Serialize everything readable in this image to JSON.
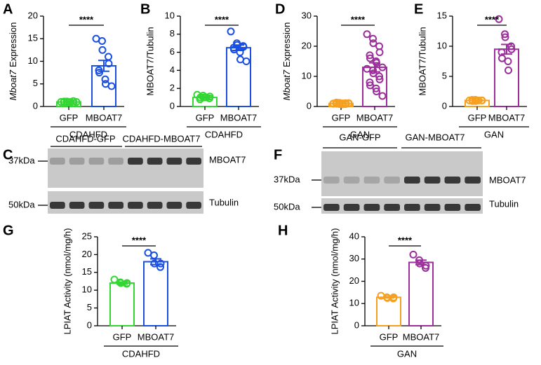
{
  "chart_data": [
    {
      "type": "bar",
      "panel": "A",
      "ylabel": {
        "italic": "Mboat7",
        "text": "Expression"
      },
      "categories": [
        "GFP",
        "MBOAT7"
      ],
      "group_label": "CDAHFD",
      "values": [
        1.0,
        9.0
      ],
      "errors": [
        0.1,
        1.2
      ],
      "colors": [
        "#33d633",
        "#1a4fe0"
      ],
      "points": [
        [
          1.0,
          1.1,
          0.9,
          1.2,
          0.8,
          1.0,
          1.1,
          0.9,
          1.0,
          1.0
        ],
        [
          15.0,
          14.5,
          12.5,
          11.0,
          9.5,
          8.0,
          7.5,
          6.0,
          5.0,
          4.5
        ]
      ],
      "significance": "****",
      "ylim": [
        0,
        20
      ],
      "yticks": [
        0,
        5,
        10,
        15,
        20
      ]
    },
    {
      "type": "bar",
      "panel": "B",
      "ylabel": "MBOAT7/Tubulin",
      "categories": [
        "GFP",
        "MBOAT7"
      ],
      "group_label": "CDAHFD",
      "values": [
        1.0,
        6.5
      ],
      "errors": [
        0.1,
        0.3
      ],
      "colors": [
        "#33d633",
        "#1a4fe0"
      ],
      "points": [
        [
          1.3,
          1.2,
          1.0,
          0.9,
          1.1,
          0.8,
          1.0,
          1.0
        ],
        [
          8.3,
          7.0,
          6.8,
          6.7,
          6.6,
          6.5,
          6.3,
          6.0,
          5.2,
          5.0
        ]
      ],
      "significance": "****",
      "ylim": [
        0,
        10
      ],
      "yticks": [
        0,
        2,
        4,
        6,
        8,
        10
      ]
    },
    {
      "type": "bar",
      "panel": "D",
      "ylabel": {
        "italic": "Mboat7",
        "text": "Expression"
      },
      "categories": [
        "GFP",
        "MBOAT7"
      ],
      "group_label": "GAN",
      "values": [
        1.0,
        13.0
      ],
      "errors": [
        0.1,
        1.5
      ],
      "colors": [
        "#f5a020",
        "#9b2f9b"
      ],
      "points": [
        [
          1.0,
          1.2,
          0.8,
          1.1,
          0.9,
          1.0,
          1.3,
          0.7,
          1.0,
          1.1,
          0.9,
          1.0,
          1.2,
          0.8,
          1.0,
          1.1,
          0.9,
          1.0,
          1.0,
          1.0
        ],
        [
          24.0,
          22.5,
          21.0,
          20.0,
          18.0,
          17.0,
          16.0,
          15.0,
          14.5,
          13.0,
          12.5,
          12.0,
          11.0,
          10.0,
          9.0,
          8.0,
          7.0,
          6.0,
          5.0,
          3.5
        ]
      ],
      "significance": "****",
      "ylim": [
        0,
        30
      ],
      "yticks": [
        0,
        10,
        20,
        30
      ]
    },
    {
      "type": "bar",
      "panel": "E",
      "ylabel": "MBOAT7/Tubulin",
      "categories": [
        "GFP",
        "MBOAT7"
      ],
      "group_label": "GAN",
      "values": [
        1.0,
        9.5
      ],
      "errors": [
        0.1,
        0.8
      ],
      "colors": [
        "#f5a020",
        "#9b2f9b"
      ],
      "points": [
        [
          1.0,
          1.1,
          0.9,
          1.0,
          1.0,
          1.1,
          0.9,
          1.0
        ],
        [
          14.5,
          12.0,
          11.5,
          10.0,
          9.5,
          9.0,
          8.0,
          7.5,
          6.0
        ]
      ],
      "significance": "****",
      "ylim": [
        0,
        15
      ],
      "yticks": [
        0,
        5,
        10,
        15
      ]
    },
    {
      "type": "bar",
      "panel": "G",
      "ylabel": "LPIAT Activity (nmol/mg/h)",
      "categories": [
        "GFP",
        "MBOAT7"
      ],
      "group_label": "CDAHFD",
      "values": [
        12.0,
        18.0
      ],
      "errors": [
        0.3,
        0.8
      ],
      "colors": [
        "#33d633",
        "#1a4fe0"
      ],
      "points": [
        [
          13.0,
          12.2,
          12.0,
          11.8,
          12.0
        ],
        [
          20.5,
          19.8,
          17.5,
          16.5,
          17.5
        ]
      ],
      "significance": "****",
      "ylim": [
        0,
        25
      ],
      "yticks": [
        0,
        5,
        10,
        15,
        20,
        25
      ]
    },
    {
      "type": "bar",
      "panel": "H",
      "ylabel": "LPIAT Activity (nmol/mg/h)",
      "categories": [
        "GFP",
        "MBOAT7"
      ],
      "group_label": "GAN",
      "values": [
        12.8,
        28.5
      ],
      "errors": [
        0.3,
        1.0
      ],
      "colors": [
        "#f5a020",
        "#9b2f9b"
      ],
      "points": [
        [
          13.5,
          12.8,
          12.5,
          12.3,
          12.8
        ],
        [
          32.0,
          29.5,
          28.0,
          26.0,
          27.0
        ]
      ],
      "significance": "****",
      "ylim": [
        0,
        40
      ],
      "yticks": [
        0,
        10,
        20,
        30,
        40
      ]
    }
  ],
  "blots": [
    {
      "panel": "C",
      "groups": [
        "CDAHFD-GFP",
        "CDAHFD-MBOAT7"
      ],
      "markers": [
        "37kDa",
        "50kDa"
      ],
      "bands": [
        "MBOAT7",
        "Tubulin"
      ]
    },
    {
      "panel": "F",
      "groups": [
        "GAN-GFP",
        "GAN-MBOAT7"
      ],
      "markers": [
        "37kDa",
        "50kDa"
      ],
      "bands": [
        "MBOAT7",
        "Tubulin"
      ]
    }
  ]
}
